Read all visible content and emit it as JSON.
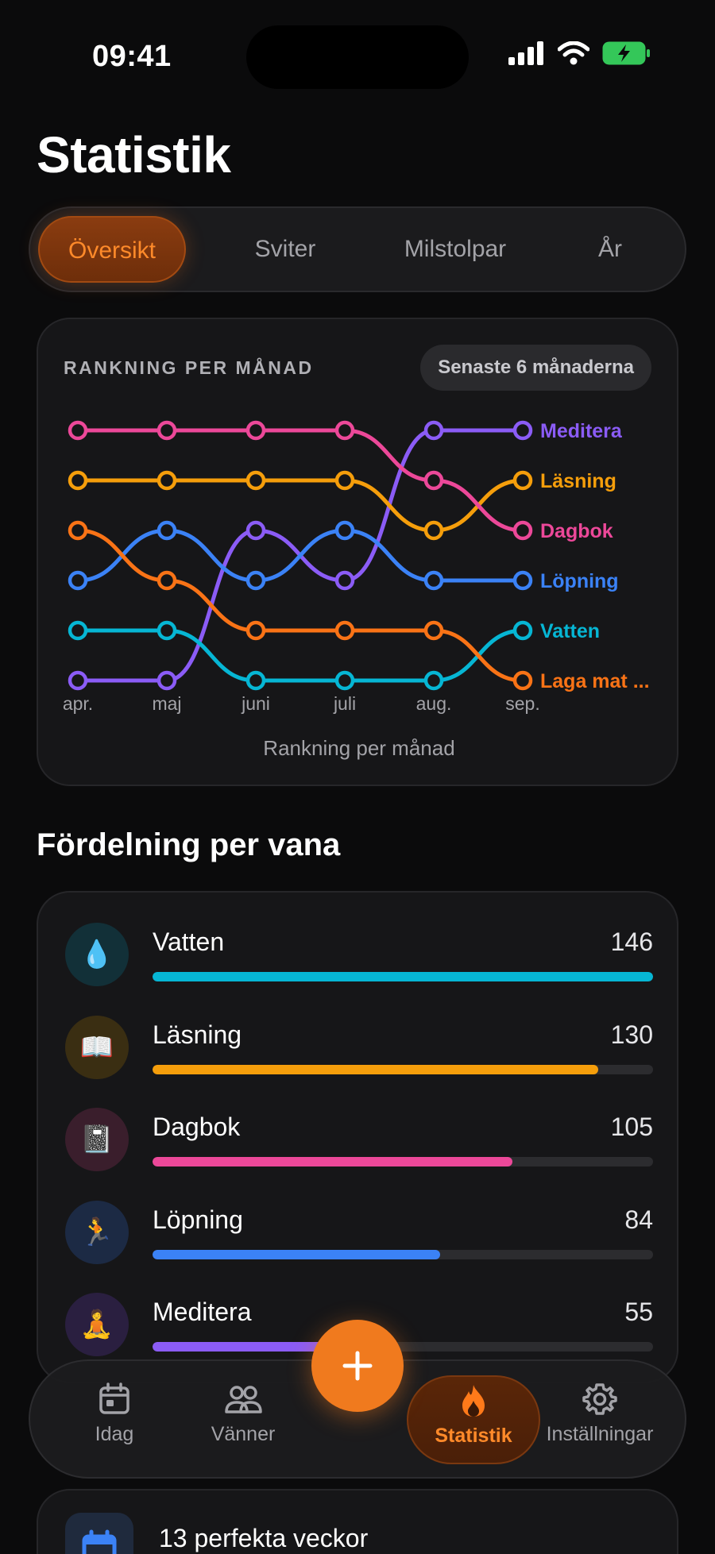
{
  "status": {
    "time": "09:41"
  },
  "page_title": "Statistik",
  "tabs": [
    {
      "label": "Översikt",
      "active": true
    },
    {
      "label": "Sviter",
      "active": false
    },
    {
      "label": "Milstolpar",
      "active": false
    },
    {
      "label": "År",
      "active": false
    }
  ],
  "ranking": {
    "header": "RANKNING PER MÅNAD",
    "period": "Senaste 6 månaderna"
  },
  "chart_data": {
    "type": "line",
    "title": "RANKNING PER MÅNAD",
    "xlabel": "Rankning per månad",
    "ylabel": "",
    "x": [
      "apr.",
      "maj",
      "juni",
      "juli",
      "aug.",
      "sep."
    ],
    "y_inverted": true,
    "ylim": [
      1,
      6
    ],
    "grid": false,
    "legend": "right-end-labels",
    "series": [
      {
        "name": "Meditera",
        "color": "#8b5cf6",
        "values": [
          6,
          6,
          3,
          4,
          1,
          1
        ]
      },
      {
        "name": "Läsning",
        "color": "#f59e0b",
        "values": [
          2,
          2,
          2,
          2,
          3,
          2
        ]
      },
      {
        "name": "Dagbok",
        "color": "#ec4899",
        "values": [
          1,
          1,
          1,
          1,
          2,
          3
        ]
      },
      {
        "name": "Löpning",
        "color": "#3b82f6",
        "values": [
          4,
          3,
          4,
          3,
          4,
          4
        ]
      },
      {
        "name": "Vatten",
        "color": "#06b6d4",
        "values": [
          5,
          5,
          6,
          6,
          6,
          5
        ]
      },
      {
        "name": "Laga mat ...",
        "color": "#f97316",
        "values": [
          3,
          4,
          5,
          5,
          5,
          6
        ]
      }
    ]
  },
  "distribution": {
    "title": "Fördelning per vana",
    "habits": [
      {
        "name": "Vatten",
        "count": "146",
        "value": 146,
        "icon": "💧",
        "color": "#06b6d4",
        "icon_bg": "#123038"
      },
      {
        "name": "Läsning",
        "count": "130",
        "value": 130,
        "icon": "📖",
        "color": "#f59e0b",
        "icon_bg": "#3a2e12"
      },
      {
        "name": "Dagbok",
        "count": "105",
        "value": 105,
        "icon": "📓",
        "color": "#ec4899",
        "icon_bg": "#3a1e2c"
      },
      {
        "name": "Löpning",
        "count": "84",
        "value": 84,
        "icon": "🏃",
        "color": "#3b82f6",
        "icon_bg": "#1c2a44"
      },
      {
        "name": "Meditera",
        "count": "55",
        "value": 55,
        "icon": "🧘",
        "color": "#8b5cf6",
        "icon_bg": "#2a1f40"
      }
    ],
    "max": 146
  },
  "nav": [
    {
      "label": "Idag",
      "icon": "calendar-icon",
      "active": false
    },
    {
      "label": "Vänner",
      "icon": "friends-icon",
      "active": false
    },
    {
      "label": "Statistik",
      "icon": "flame-icon",
      "active": true
    },
    {
      "label": "Inställningar",
      "icon": "gear-icon",
      "active": false
    }
  ],
  "summary": {
    "text": "13 perfekta veckor"
  }
}
